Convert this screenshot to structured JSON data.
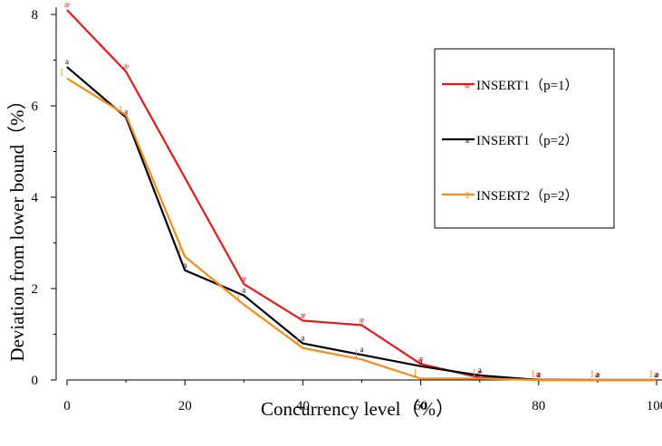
{
  "chart_data": {
    "type": "line",
    "xlabel": "Concurrency level（%）",
    "ylabel": "Deviation from lower bound（%）",
    "xlim": [
      0,
      100
    ],
    "ylim": [
      0,
      8
    ],
    "x_ticks": [
      "0",
      "20",
      "40",
      "60",
      "80",
      "100"
    ],
    "y_ticks": [
      "0",
      "2",
      "4",
      "6",
      "8"
    ],
    "grid": false,
    "legend_position": "top-right",
    "series": [
      {
        "name": "INSERT1（p=1）",
        "color": "#e41a1c",
        "marker_glyph": "æ",
        "x": [
          0,
          10,
          30,
          40,
          50,
          60,
          70,
          80,
          90,
          100
        ],
        "y": [
          8.1,
          6.75,
          2.1,
          1.3,
          1.2,
          0.35,
          0.05,
          0.01,
          0.0,
          0.0
        ]
      },
      {
        "name": "INSERT1（p=2）",
        "color": "#000000",
        "marker_glyph": "a",
        "x": [
          0,
          10,
          20,
          30,
          40,
          50,
          60,
          70,
          80,
          90,
          100
        ],
        "y": [
          6.85,
          5.75,
          2.4,
          1.85,
          0.8,
          0.55,
          0.3,
          0.1,
          0.0,
          0.0,
          0.0
        ]
      },
      {
        "name": "INSERT2（p=2）",
        "color": "#f28c1b",
        "marker_glyph": "Ⅰ",
        "x": [
          0,
          10,
          20,
          30,
          40,
          50,
          60,
          70,
          80,
          90,
          100
        ],
        "y": [
          6.6,
          5.8,
          2.7,
          1.65,
          0.7,
          0.45,
          0.03,
          0.03,
          0.0,
          0.0,
          0.0
        ]
      }
    ]
  }
}
